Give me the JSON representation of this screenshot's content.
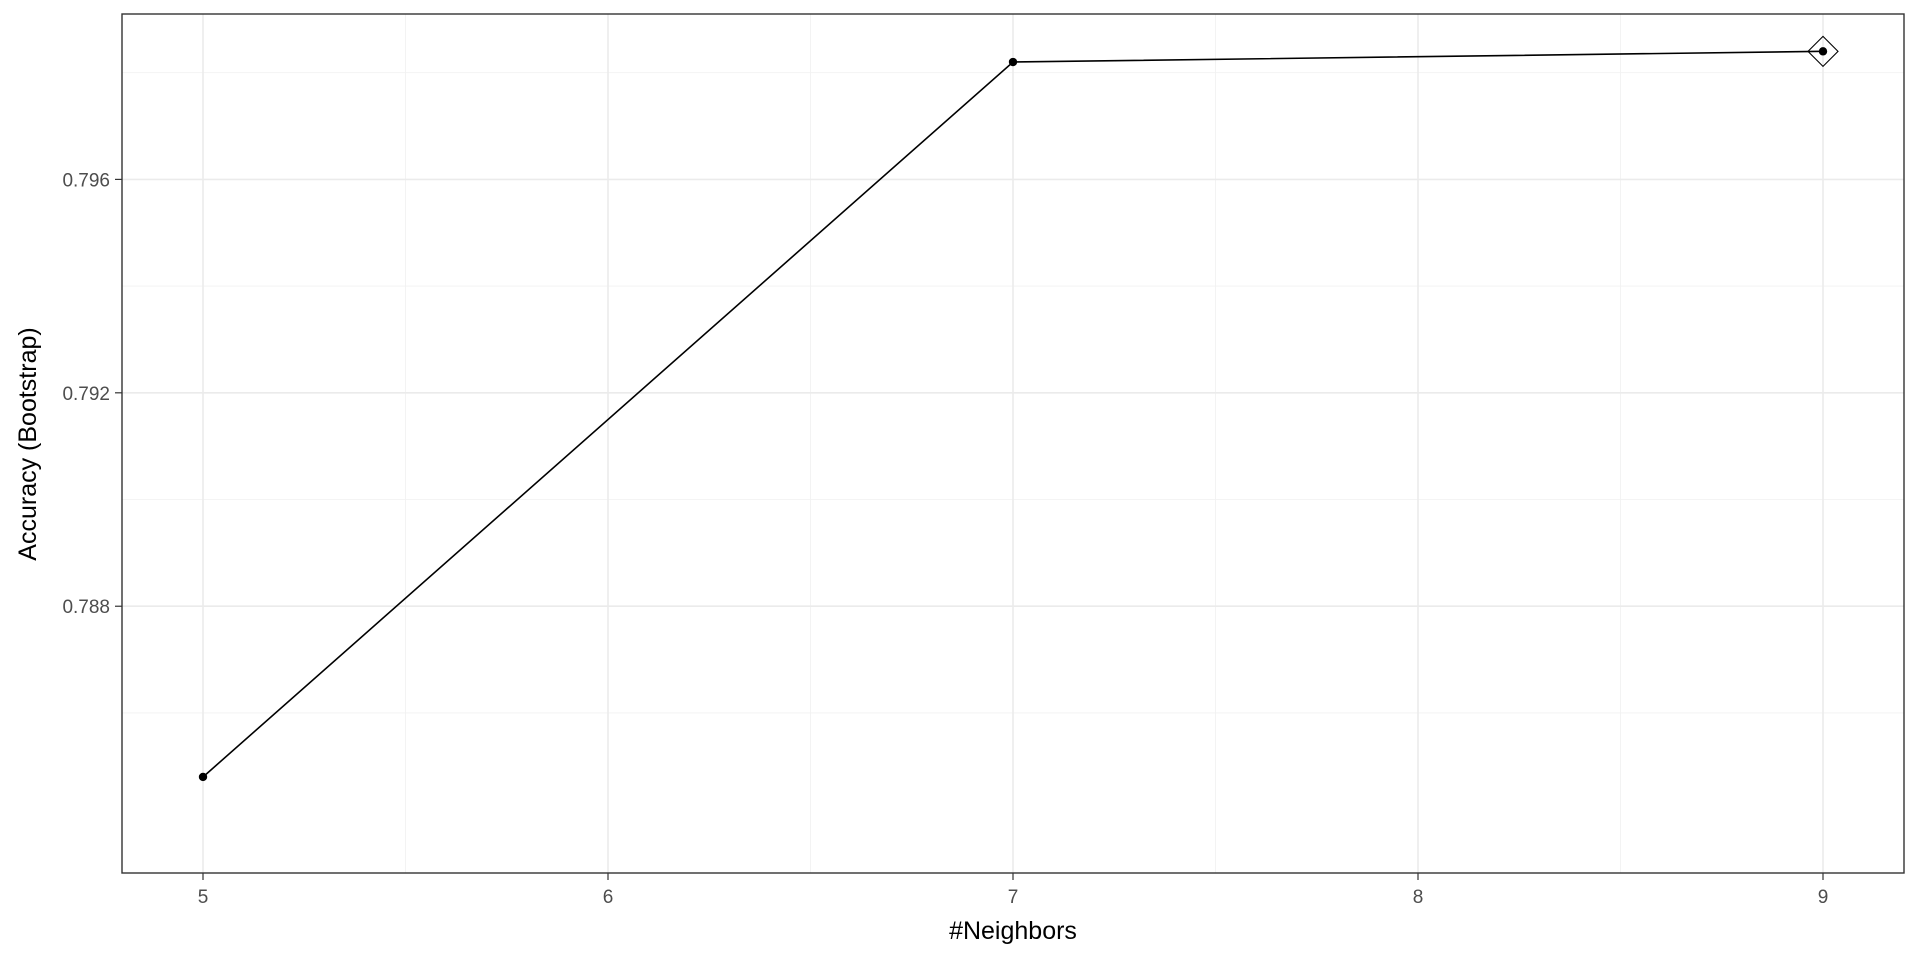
{
  "chart_data": {
    "type": "line",
    "xlabel": "#Neighbors",
    "ylabel": "Accuracy (Bootstrap)",
    "x": [
      5,
      7,
      9
    ],
    "series": [
      {
        "values": [
          0.7848,
          0.7982,
          0.7984
        ]
      }
    ],
    "best_point": {
      "x": 9,
      "y": 0.7984,
      "marker": "diamond"
    },
    "xlim": [
      4.8,
      9.2
    ],
    "ylim": [
      0.783,
      0.7991
    ],
    "x_ticks": [
      5,
      6,
      7,
      8,
      9
    ],
    "x_tick_labels": [
      "5",
      "6",
      "7",
      "8",
      "9"
    ],
    "y_ticks": [
      0.788,
      0.792,
      0.796
    ],
    "y_tick_labels": [
      "0.788",
      "0.792",
      "0.796"
    ],
    "x_minor_ticks": [
      5.5,
      6.5,
      7.5,
      8.5
    ],
    "y_minor_ticks": [
      0.786,
      0.79,
      0.794,
      0.798
    ],
    "grid": true,
    "theme": "bw",
    "colors": {
      "line": "#000000",
      "grid_major": "#ebebeb",
      "grid_minor": "#f2f2f2",
      "border": "#333333",
      "tick_text": "#4d4d4d"
    }
  }
}
